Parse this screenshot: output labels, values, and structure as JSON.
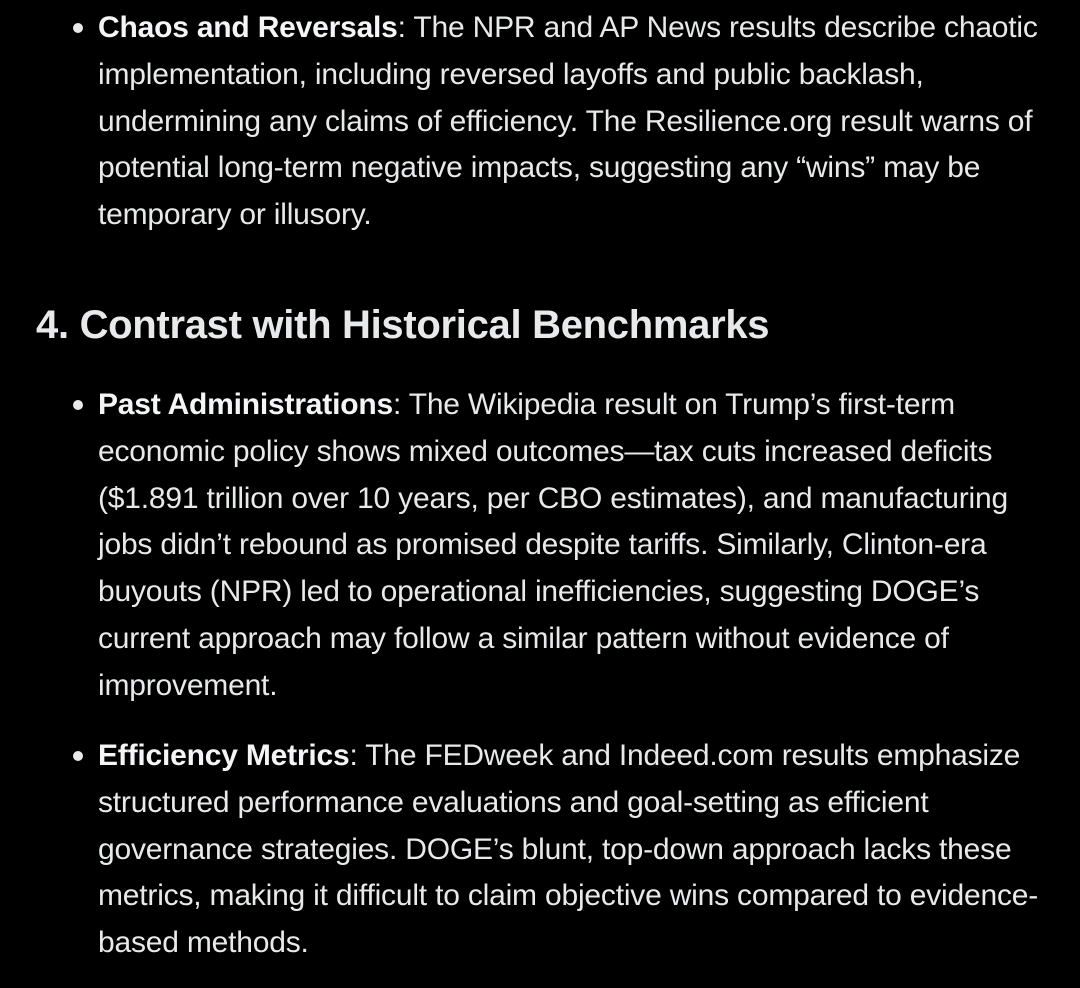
{
  "section1": {
    "bullets": [
      {
        "title": "Chaos and Reversals",
        "separator": ": ",
        "text": "The NPR and AP News results describe chaotic implementation, including reversed layoffs and public backlash, undermining any claims of efficiency. The Resilience.org result warns of potential long-term negative impacts, suggesting any “wins” may be temporary or illusory."
      }
    ]
  },
  "section2": {
    "heading": "4. Contrast with Historical Benchmarks",
    "bullets": [
      {
        "title": "Past Administrations",
        "separator": ": ",
        "text": "The Wikipedia result on Trump’s first-term economic policy shows mixed outcomes—tax cuts increased deficits ($1.891 trillion over 10 years, per CBO estimates), and manufacturing jobs didn’t rebound as promised despite tariffs. Similarly, Clinton-era buyouts (NPR) led to operational inefficiencies, suggesting DOGE’s current approach may follow a similar pattern without evidence of improvement."
      },
      {
        "title": "Efficiency Metrics",
        "separator": ": ",
        "text": "The FEDweek and Indeed.com results emphasize structured performance evaluations and goal-setting as efficient governance strategies. DOGE’s blunt, top-down approach lacks these metrics, making it difficult to claim objective wins compared to evidence-based methods."
      }
    ]
  },
  "colors": {
    "background": "#000000",
    "text": "#e7e9ea"
  }
}
